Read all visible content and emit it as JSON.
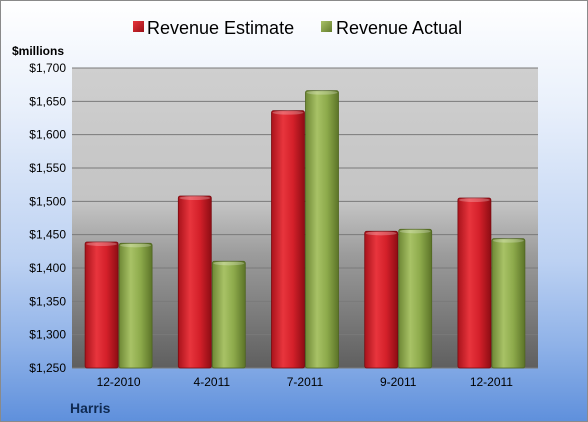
{
  "chart_data": {
    "type": "bar",
    "ylabel": "$millions",
    "categories": [
      "12-2010",
      "4-2011",
      "7-2011",
      "9-2011",
      "12-2011"
    ],
    "series": [
      {
        "name": "Revenue Estimate",
        "values": [
          1439,
          1508,
          1636,
          1455,
          1505
        ],
        "color": "#d4202a"
      },
      {
        "name": "Revenue Actual",
        "values": [
          1437,
          1410,
          1666,
          1458,
          1444
        ],
        "color": "#8daa4b"
      }
    ],
    "ylim": [
      1250,
      1700
    ],
    "yticks": [
      1250,
      1300,
      1350,
      1400,
      1450,
      1500,
      1550,
      1600,
      1650,
      1700
    ],
    "ytick_labels": [
      "$1,250",
      "$1,300",
      "$1,350",
      "$1,400",
      "$1,450",
      "$1,500",
      "$1,550",
      "$1,600",
      "$1,650",
      "$1,700"
    ],
    "grid": true,
    "legend_position": "top-center",
    "company_label": "Harris"
  }
}
